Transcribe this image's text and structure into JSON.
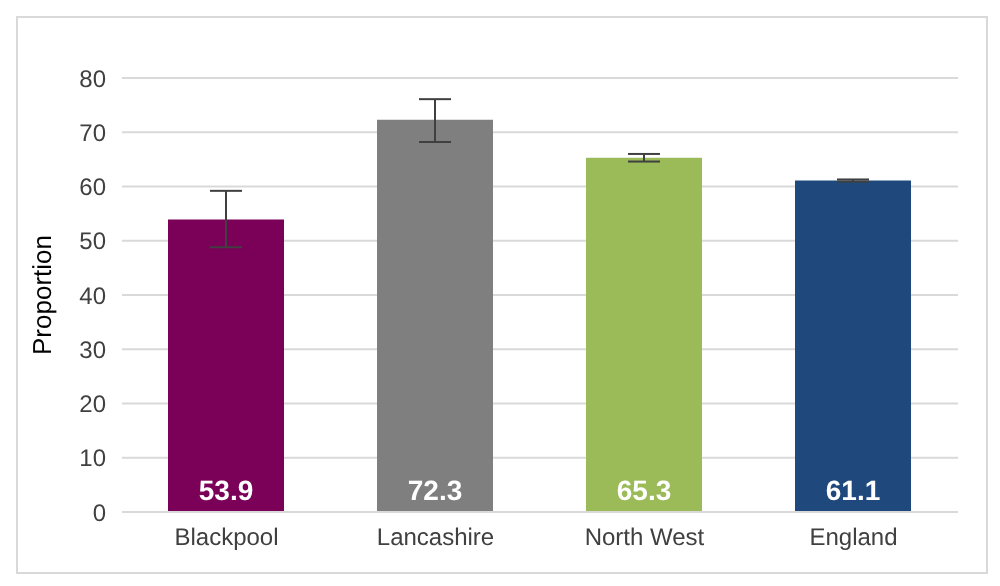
{
  "chart_data": {
    "type": "bar",
    "ylabel": "Proportion",
    "categories": [
      "Blackpool",
      "Lancashire",
      "North West",
      "England"
    ],
    "values": [
      53.9,
      72.3,
      65.3,
      61.1
    ],
    "colors": [
      "#7b0058",
      "#7f7f7f",
      "#9bbb59",
      "#1f497d"
    ],
    "errors": [
      [
        48.8,
        59.2
      ],
      [
        68.2,
        76.1
      ],
      [
        64.6,
        66.0
      ],
      [
        60.9,
        61.3
      ]
    ],
    "ylim": [
      0,
      80
    ],
    "yticks": [
      0,
      10,
      20,
      30,
      40,
      50,
      60,
      70,
      80
    ],
    "grid": "y",
    "data_labels": true
  }
}
